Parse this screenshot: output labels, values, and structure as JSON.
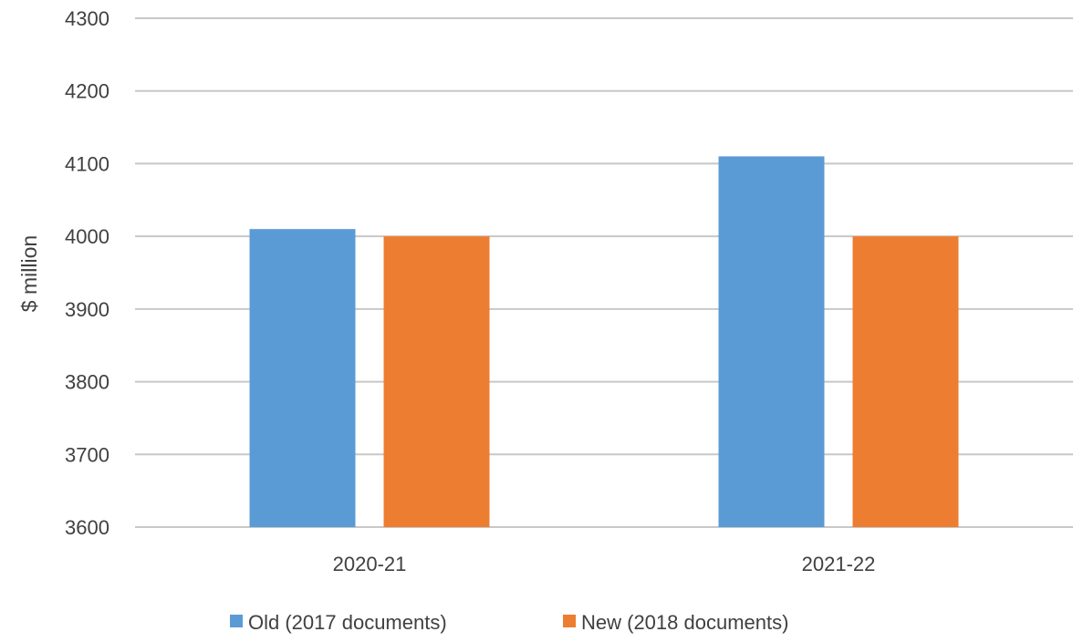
{
  "chart_data": {
    "type": "bar",
    "title": "",
    "xlabel": "",
    "ylabel": "$ million",
    "categories": [
      "2020-21",
      "2021-22"
    ],
    "series": [
      {
        "name": "Old (2017 documents)",
        "values": [
          4010,
          4110
        ],
        "color": "#5b9bd5"
      },
      {
        "name": "New (2018 documents)",
        "values": [
          4000,
          4000
        ],
        "color": "#ed7d31"
      }
    ],
    "ylim": [
      3600,
      4300
    ],
    "yticks": [
      3600,
      3700,
      3800,
      3900,
      4000,
      4100,
      4200,
      4300
    ],
    "grid": true,
    "legend_position": "bottom"
  }
}
